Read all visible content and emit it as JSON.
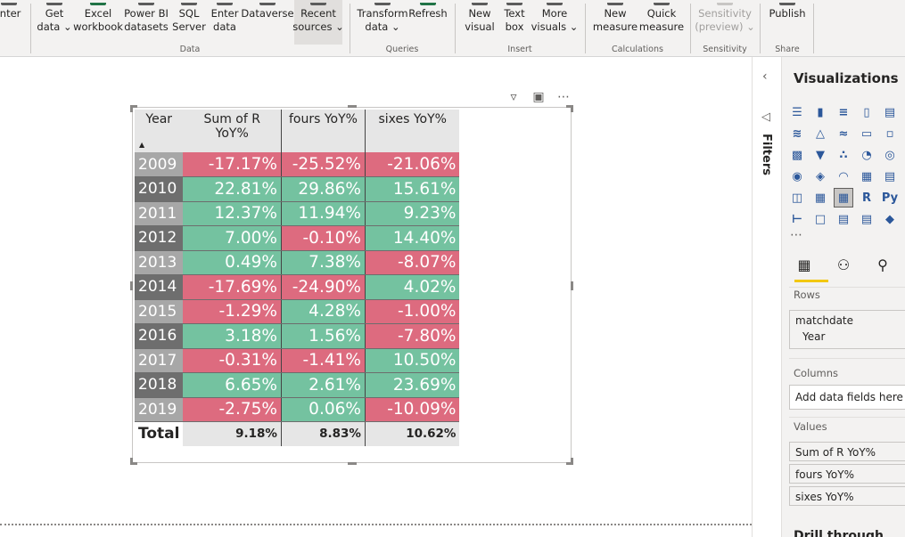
{
  "ribbon": {
    "groups": [
      {
        "label": "Data",
        "buttons": [
          {
            "l1": "",
            "l2": "inter"
          },
          {
            "l1": "Get",
            "l2": "data ⌄"
          },
          {
            "l1": "Excel",
            "l2": "workbook"
          },
          {
            "l1": "Power BI",
            "l2": "datasets"
          },
          {
            "l1": "SQL",
            "l2": "Server"
          },
          {
            "l1": "Enter",
            "l2": "data"
          },
          {
            "l1": "Dataverse",
            "l2": ""
          },
          {
            "l1": "Recent",
            "l2": "sources ⌄"
          }
        ]
      },
      {
        "label": "Queries",
        "buttons": [
          {
            "l1": "Transform",
            "l2": "data ⌄"
          },
          {
            "l1": "Refresh",
            "l2": ""
          }
        ]
      },
      {
        "label": "Insert",
        "buttons": [
          {
            "l1": "New",
            "l2": "visual"
          },
          {
            "l1": "Text",
            "l2": "box"
          },
          {
            "l1": "More",
            "l2": "visuals ⌄"
          }
        ]
      },
      {
        "label": "Calculations",
        "buttons": [
          {
            "l1": "New",
            "l2": "measure"
          },
          {
            "l1": "Quick",
            "l2": "measure"
          }
        ]
      },
      {
        "label": "Sensitivity",
        "buttons": [
          {
            "l1": "Sensitivity",
            "l2": "(preview) ⌄"
          }
        ]
      },
      {
        "label": "Share",
        "buttons": [
          {
            "l1": "Publish",
            "l2": ""
          }
        ]
      }
    ]
  },
  "table": {
    "headers": {
      "year": "Year",
      "c1": "Sum of R YoY%",
      "c2": "fours YoY%",
      "c3": "sixes YoY%"
    },
    "rows": [
      {
        "year": "2009",
        "c1": "-17.17%",
        "c2": "-25.52%",
        "c3": "-21.06%"
      },
      {
        "year": "2010",
        "c1": "22.81%",
        "c2": "29.86%",
        "c3": "15.61%"
      },
      {
        "year": "2011",
        "c1": "12.37%",
        "c2": "11.94%",
        "c3": "9.23%"
      },
      {
        "year": "2012",
        "c1": "7.00%",
        "c2": "-0.10%",
        "c3": "14.40%"
      },
      {
        "year": "2013",
        "c1": "0.49%",
        "c2": "7.38%",
        "c3": "-8.07%"
      },
      {
        "year": "2014",
        "c1": "-17.69%",
        "c2": "-24.90%",
        "c3": "4.02%"
      },
      {
        "year": "2015",
        "c1": "-1.29%",
        "c2": "4.28%",
        "c3": "-1.00%"
      },
      {
        "year": "2016",
        "c1": "3.18%",
        "c2": "1.56%",
        "c3": "-7.80%"
      },
      {
        "year": "2017",
        "c1": "-0.31%",
        "c2": "-1.41%",
        "c3": "10.50%"
      },
      {
        "year": "2018",
        "c1": "6.65%",
        "c2": "2.61%",
        "c3": "23.69%"
      },
      {
        "year": "2019",
        "c1": "-2.75%",
        "c2": "0.06%",
        "c3": "-10.09%"
      }
    ],
    "total": {
      "label": "Total",
      "c1": "9.18%",
      "c2": "8.83%",
      "c3": "10.62%"
    },
    "colors": {
      "negative": "#dd6b7f",
      "positive": "#74c2a0"
    }
  },
  "filters": {
    "label": "Filters"
  },
  "viz": {
    "title": "Visualizations",
    "rows_label": "Rows",
    "rows_field": "matchdate",
    "rows_sub": "Year",
    "columns_label": "Columns",
    "columns_placeholder": "Add data fields here",
    "values_label": "Values",
    "values": [
      "Sum of R YoY%",
      "fours YoY%",
      "sixes YoY%"
    ],
    "drill_label": "Drill through"
  }
}
